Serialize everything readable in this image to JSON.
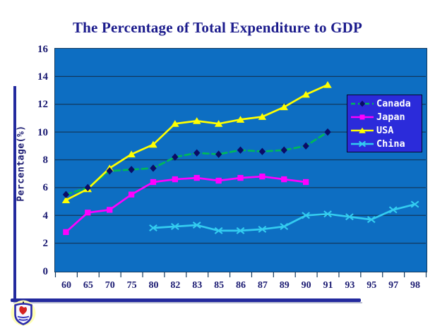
{
  "slide": {
    "title": "The Percentage of Total Expenditure to GDP"
  },
  "chart_data": {
    "type": "line",
    "title": "The Percentage of Total Expenditure to GDP",
    "xlabel": "",
    "ylabel": "Percentage(%)",
    "ylim": [
      0,
      16
    ],
    "ytick_step": 2,
    "yticks": [
      "0",
      "2",
      "4",
      "6",
      "8",
      "10",
      "12",
      "14",
      "16"
    ],
    "grid": true,
    "legend_position": "right-inside",
    "categories": [
      "60",
      "65",
      "70",
      "75",
      "80",
      "82",
      "83",
      "85",
      "86",
      "87",
      "89",
      "90",
      "91",
      "93",
      "95",
      "97",
      "98"
    ],
    "series": [
      {
        "name": "Canada",
        "color": "#00b85a",
        "dashed": true,
        "marker": "diamond",
        "marker_color": "#0b0b66",
        "values": [
          5.5,
          6.0,
          7.2,
          7.3,
          7.4,
          8.2,
          8.5,
          8.4,
          8.7,
          8.6,
          8.7,
          9.0,
          10.0,
          null,
          null,
          null,
          null
        ]
      },
      {
        "name": "Japan",
        "color": "#ff00ff",
        "dashed": false,
        "marker": "square",
        "marker_color": "#ff00ff",
        "values": [
          2.8,
          4.2,
          4.4,
          5.5,
          6.4,
          6.6,
          6.7,
          6.5,
          6.7,
          6.8,
          6.6,
          6.4,
          null,
          null,
          null,
          null,
          null
        ]
      },
      {
        "name": "USA",
        "color": "#ffff00",
        "dashed": false,
        "marker": "triangle",
        "marker_color": "#ffff00",
        "values": [
          5.1,
          5.9,
          7.4,
          8.4,
          9.1,
          10.6,
          10.8,
          10.6,
          10.9,
          11.1,
          11.8,
          12.7,
          13.4,
          null,
          null,
          null,
          null
        ]
      },
      {
        "name": "China",
        "color": "#33ccf0",
        "dashed": false,
        "marker": "x",
        "marker_color": "#33ccf0",
        "values": [
          null,
          null,
          null,
          null,
          3.1,
          3.2,
          3.3,
          2.9,
          2.9,
          3.0,
          3.2,
          4.0,
          4.1,
          3.9,
          3.7,
          4.4,
          4.8
        ]
      }
    ]
  },
  "colors": {
    "title_text": "#1b1b8c",
    "axis_text": "#1b1b72",
    "plot_background": "#0d6ec2",
    "gridline": "#12395e",
    "legend_background": "#2b2bda",
    "legend_text": "#ffffff",
    "decor_line": "#232a9e",
    "slide_background": "#ffffff"
  }
}
